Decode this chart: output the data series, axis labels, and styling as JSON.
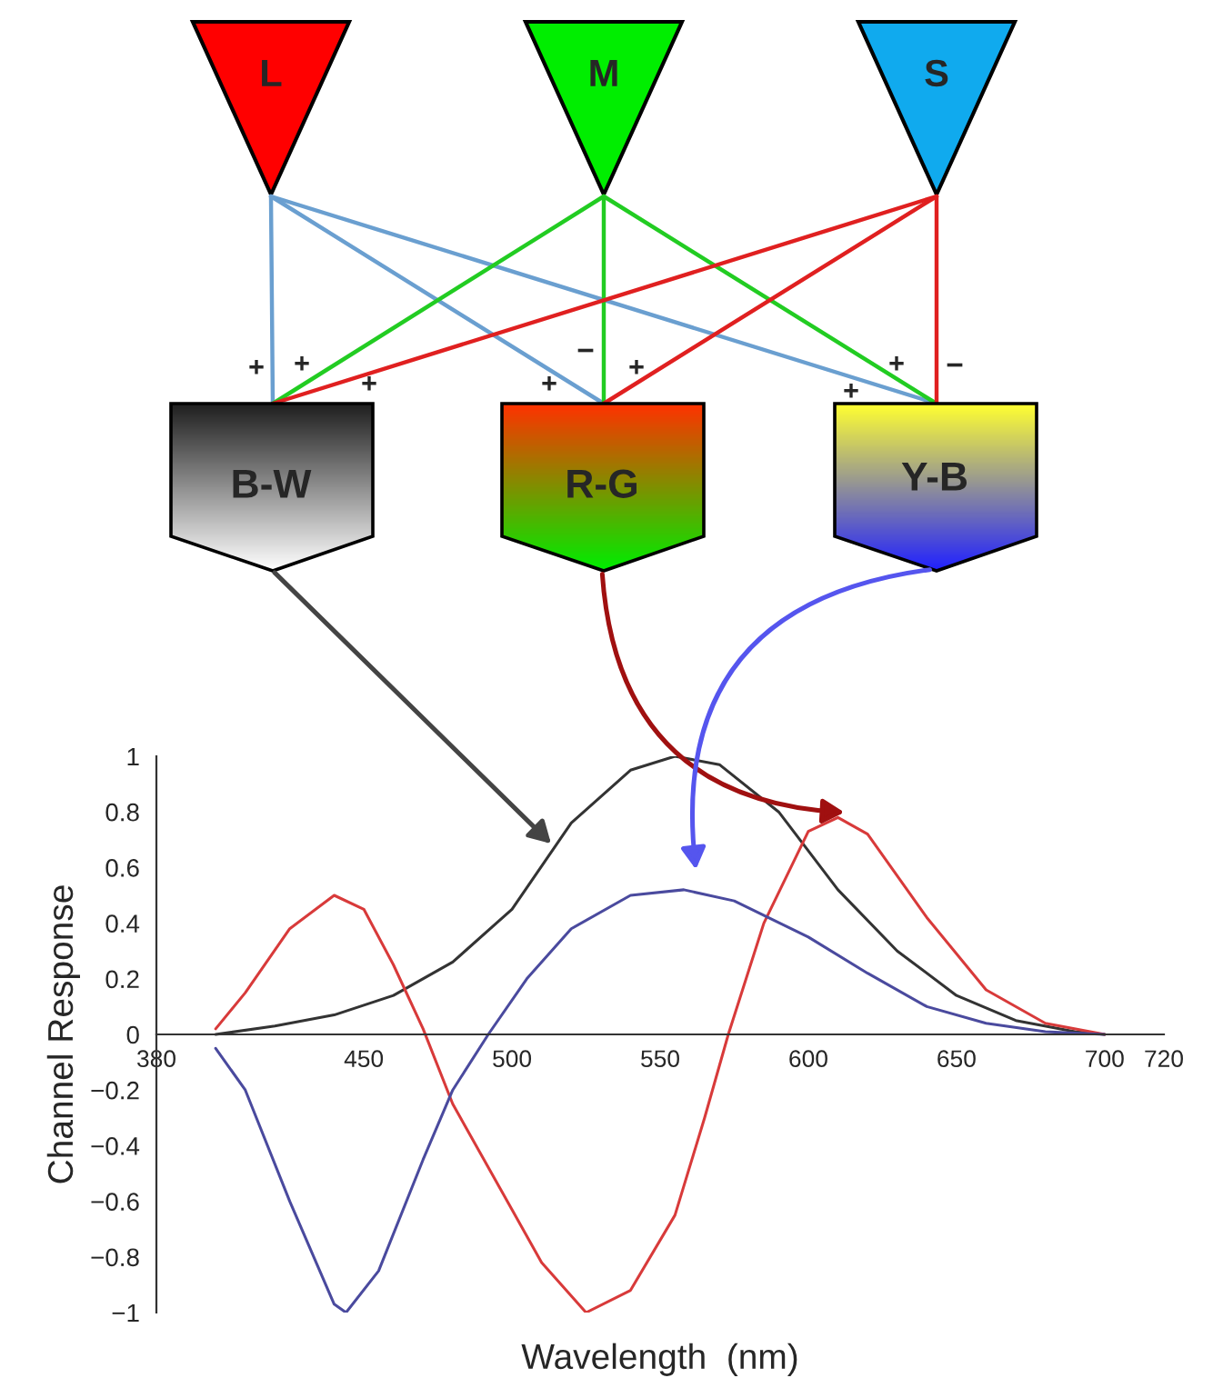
{
  "chart_data": {
    "type": "line",
    "xlabel": "Wavelength  (nm)",
    "ylabel": "Channel Response",
    "xlim": [
      380,
      720
    ],
    "ylim": [
      -1,
      1
    ],
    "xticks": [
      380,
      450,
      500,
      550,
      600,
      650,
      700,
      720
    ],
    "yticks": [
      {
        "value": -1,
        "label": "−1"
      },
      {
        "value": -0.8,
        "label": "−0.8"
      },
      {
        "value": -0.6,
        "label": "−0.6"
      },
      {
        "value": -0.4,
        "label": "−0.4"
      },
      {
        "value": -0.2,
        "label": "−0.2"
      },
      0,
      0.2,
      0.4,
      0.6,
      0.8,
      1
    ],
    "grid": false,
    "legend": false,
    "marker": "none",
    "line_style": "solid",
    "series": [
      {
        "color": "#333333",
        "x": [
          400,
          420,
          440,
          460,
          480,
          500,
          520,
          540,
          555,
          570,
          590,
          610,
          630,
          650,
          670,
          690,
          700
        ],
        "values": [
          0,
          0.03,
          0.07,
          0.14,
          0.26,
          0.45,
          0.76,
          0.95,
          1.0,
          0.97,
          0.8,
          0.52,
          0.3,
          0.14,
          0.05,
          0.01,
          0
        ]
      },
      {
        "color": "#d83a3a",
        "x": [
          400,
          410,
          425,
          440,
          450,
          460,
          470,
          480,
          500,
          510,
          525,
          540,
          555,
          565,
          573,
          585,
          600,
          610,
          620,
          640,
          660,
          680,
          700
        ],
        "values": [
          0.02,
          0.15,
          0.38,
          0.5,
          0.45,
          0.25,
          0.02,
          -0.25,
          -0.63,
          -0.82,
          -1.0,
          -0.92,
          -0.65,
          -0.3,
          0,
          0.4,
          0.73,
          0.78,
          0.72,
          0.42,
          0.16,
          0.04,
          0
        ]
      },
      {
        "color": "#4a4a9e",
        "x": [
          400,
          410,
          425,
          440,
          444,
          455,
          470,
          480,
          492,
          505,
          520,
          540,
          558,
          575,
          600,
          620,
          640,
          660,
          680,
          700
        ],
        "values": [
          -0.05,
          -0.2,
          -0.6,
          -0.97,
          -1.0,
          -0.85,
          -0.45,
          -0.2,
          0,
          0.2,
          0.38,
          0.5,
          0.52,
          0.48,
          0.35,
          0.22,
          0.1,
          0.04,
          0.01,
          0
        ]
      }
    ],
    "annotations": [
      "L",
      "M",
      "S",
      "B-W",
      "R-G",
      "Y-B",
      "+",
      "+",
      "+",
      "−",
      "+",
      "+",
      "+",
      "+",
      "−"
    ]
  }
}
